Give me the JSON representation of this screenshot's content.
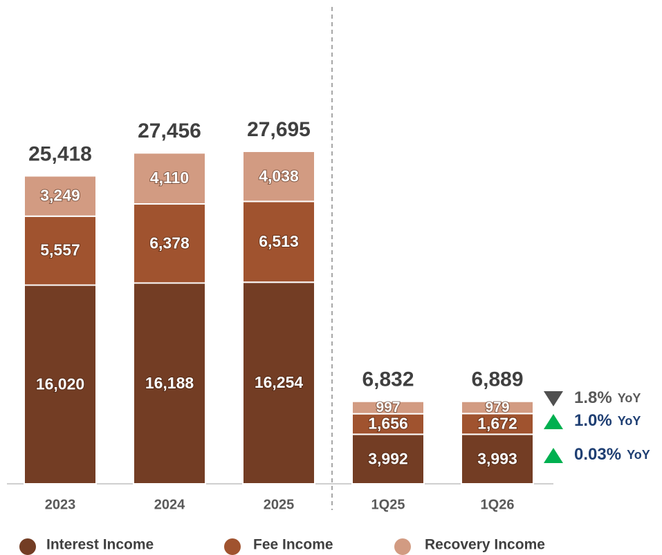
{
  "chart_data": {
    "type": "bar",
    "stacked": true,
    "categories": [
      "2023",
      "2024",
      "2025",
      "1Q25",
      "1Q26"
    ],
    "series": [
      {
        "name": "Interest Income",
        "color": "#733d24",
        "values": [
          16020,
          16188,
          16254,
          3992,
          3993
        ],
        "value_labels": [
          "16,020",
          "16,188",
          "16,254",
          "3,992",
          "3,993"
        ]
      },
      {
        "name": "Fee Income",
        "color": "#a0532f",
        "values": [
          5557,
          6378,
          6513,
          1656,
          1672
        ],
        "value_labels": [
          "5,557",
          "6,378",
          "6,513",
          "1,656",
          "1,672"
        ]
      },
      {
        "name": "Recovery Income",
        "color": "#d29b82",
        "values": [
          3249,
          4110,
          4038,
          997,
          979
        ],
        "value_labels": [
          "3,249",
          "4,110",
          "4,038",
          "997",
          "979"
        ]
      }
    ],
    "totals": {
      "values": [
        25418,
        27456,
        27695,
        6832,
        6889
      ],
      "value_labels": [
        "25,418",
        "27,456",
        "27,695",
        "6,832",
        "6,889"
      ]
    },
    "annotations": [
      {
        "text": "1.8%",
        "unit": "YoY",
        "arrow": "down",
        "arrow_color": "#505050",
        "text_color": "#595959"
      },
      {
        "text": "1.0%",
        "unit": "YoY",
        "arrow": "up",
        "arrow_color": "#00b050",
        "text_color": "#1f3f73"
      },
      {
        "text": "0.03%",
        "unit": "YoY",
        "arrow": "up",
        "arrow_color": "#00b050",
        "text_color": "#1f3f73"
      }
    ]
  }
}
